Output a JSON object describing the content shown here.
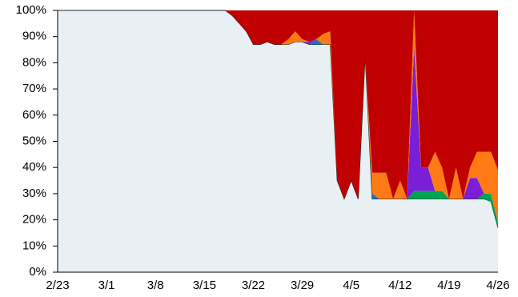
{
  "chart_data": {
    "type": "stacked_area",
    "categories": [
      "2/23",
      null,
      null,
      null,
      null,
      null,
      null,
      "3/1",
      null,
      null,
      null,
      null,
      null,
      null,
      "3/8",
      null,
      null,
      null,
      null,
      null,
      null,
      "3/15",
      null,
      null,
      null,
      null,
      null,
      null,
      "3/22",
      null,
      null,
      null,
      null,
      null,
      null,
      "3/29",
      null,
      null,
      null,
      null,
      null,
      null,
      "4/5",
      null,
      null,
      null,
      null,
      null,
      null,
      "4/12",
      null,
      null,
      null,
      null,
      null,
      null,
      "4/19",
      null,
      null,
      null,
      null,
      null,
      null,
      "4/26"
    ],
    "series": [
      {
        "color": "#e8f0f4",
        "values": [
          100,
          100,
          100,
          100,
          100,
          100,
          100,
          100,
          100,
          100,
          100,
          100,
          100,
          100,
          100,
          100,
          100,
          100,
          100,
          100,
          100,
          100,
          100,
          100,
          100,
          98,
          95,
          92,
          87,
          87,
          88,
          87,
          87,
          87,
          88,
          88,
          87,
          87,
          87,
          87,
          35,
          28,
          35,
          28,
          83,
          28,
          28,
          28,
          28,
          28,
          28,
          28,
          28,
          28,
          28,
          28,
          28,
          28,
          28,
          28,
          28,
          28,
          27,
          17
        ]
      },
      {
        "color": "#00a550",
        "values": [
          0,
          0,
          0,
          0,
          0,
          0,
          0,
          0,
          0,
          0,
          0,
          0,
          0,
          0,
          0,
          0,
          0,
          0,
          0,
          0,
          0,
          0,
          0,
          0,
          0,
          0,
          0,
          0,
          0,
          0,
          0,
          0,
          0,
          0,
          0,
          0,
          0,
          0,
          0,
          0,
          0,
          0,
          0,
          0,
          0,
          0,
          0,
          0,
          0,
          0,
          0,
          3,
          3,
          3,
          3,
          3,
          0,
          0,
          0,
          0,
          0,
          2,
          3,
          2
        ]
      },
      {
        "color": "#1f6fc0",
        "values": [
          0,
          0,
          0,
          0,
          0,
          0,
          0,
          0,
          0,
          0,
          0,
          0,
          0,
          0,
          0,
          0,
          0,
          0,
          0,
          0,
          0,
          0,
          0,
          0,
          0,
          0,
          0,
          0,
          0,
          0,
          0,
          0,
          0,
          0,
          0,
          0,
          0,
          2,
          0,
          0,
          0,
          0,
          0,
          0,
          0,
          2,
          0,
          0,
          0,
          0,
          0,
          0,
          0,
          0,
          0,
          0,
          0,
          0,
          0,
          0,
          0,
          0,
          0,
          0
        ]
      },
      {
        "color": "#7a1fd6",
        "values": [
          0,
          0,
          0,
          0,
          0,
          0,
          0,
          0,
          0,
          0,
          0,
          0,
          0,
          0,
          0,
          0,
          0,
          0,
          0,
          0,
          0,
          0,
          0,
          0,
          0,
          0,
          0,
          0,
          0,
          0,
          0,
          0,
          0,
          0,
          0,
          0,
          1,
          0,
          0,
          0,
          0,
          0,
          0,
          0,
          0,
          0,
          0,
          0,
          0,
          0,
          0,
          55,
          9,
          9,
          0,
          0,
          0,
          0,
          0,
          8,
          8,
          0,
          0,
          0
        ]
      },
      {
        "color": "#ff7a14",
        "values": [
          0,
          0,
          0,
          0,
          0,
          0,
          0,
          0,
          0,
          0,
          0,
          0,
          0,
          0,
          0,
          0,
          0,
          0,
          0,
          0,
          0,
          0,
          0,
          0,
          0,
          0,
          0,
          0,
          0,
          0,
          0,
          0,
          0,
          2,
          4,
          1,
          0,
          0,
          4,
          5,
          0,
          0,
          0,
          0,
          0,
          8,
          10,
          10,
          0,
          7,
          0,
          14,
          0,
          0,
          15,
          9,
          0,
          12,
          0,
          4,
          10,
          16,
          16,
          20
        ]
      },
      {
        "color": "#c00000",
        "values": [
          0,
          0,
          0,
          0,
          0,
          0,
          0,
          0,
          0,
          0,
          0,
          0,
          0,
          0,
          0,
          0,
          0,
          0,
          0,
          0,
          0,
          0,
          0,
          0,
          0,
          2,
          5,
          8,
          13,
          13,
          12,
          13,
          13,
          11,
          8,
          11,
          12,
          11,
          9,
          8,
          65,
          72,
          65,
          72,
          17,
          62,
          62,
          62,
          72,
          65,
          72,
          0,
          60,
          60,
          54,
          60,
          72,
          60,
          72,
          60,
          54,
          54,
          54,
          61
        ]
      }
    ],
    "ylim": [
      0,
      100
    ],
    "yticks": [
      {
        "value": 0,
        "label": "0%"
      },
      {
        "value": 10,
        "label": "10%"
      },
      {
        "value": 20,
        "label": "20%"
      },
      {
        "value": 30,
        "label": "30%"
      },
      {
        "value": 40,
        "label": "40%"
      },
      {
        "value": 50,
        "label": "50%"
      },
      {
        "value": 60,
        "label": "60%"
      },
      {
        "value": 70,
        "label": "70%"
      },
      {
        "value": 80,
        "label": "80%"
      },
      {
        "value": 90,
        "label": "90%"
      },
      {
        "value": 100,
        "label": "100%"
      }
    ]
  }
}
